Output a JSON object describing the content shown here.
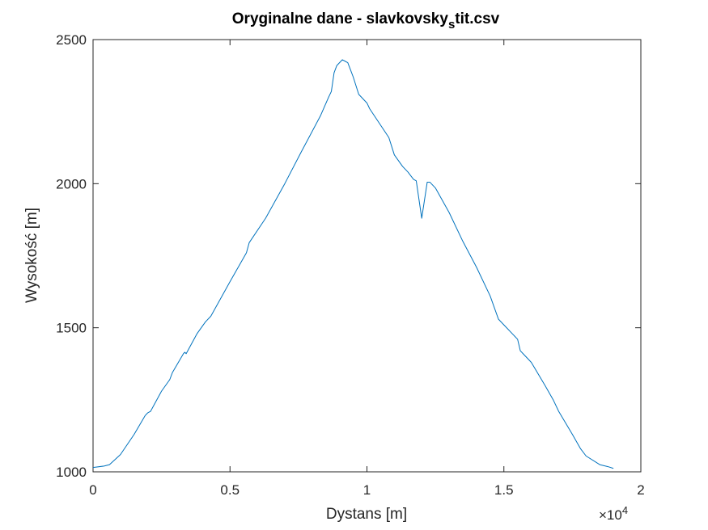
{
  "chart_data": {
    "type": "line",
    "title": {
      "main": "Oryginalne dane - slavkovsky",
      "subscript": "s",
      "rest": "tit.csv"
    },
    "xlabel": "Dystans [m]",
    "ylabel": "Wysokość [m]",
    "x_exponent": {
      "base": "×10",
      "power": "4"
    },
    "xlim": [
      0,
      20000
    ],
    "ylim": [
      1000,
      2500
    ],
    "x_ticks": [
      0,
      5000,
      10000,
      15000,
      20000
    ],
    "x_tick_labels": [
      "0",
      "0.5",
      "1",
      "1.5",
      "2"
    ],
    "y_ticks": [
      1000,
      1500,
      2000,
      2500
    ],
    "y_tick_labels": [
      "1000",
      "1500",
      "2000",
      "2500"
    ],
    "grid": false,
    "box": true,
    "series": [
      {
        "color": "#0072BD",
        "x": [
          0,
          400,
          600,
          1000,
          1500,
          1900,
          2000,
          2100,
          2500,
          2800,
          2900,
          3300,
          3350,
          3400,
          3800,
          4100,
          4300,
          5000,
          5600,
          5700,
          6300,
          7000,
          7600,
          8300,
          8600,
          8700,
          8800,
          8900,
          9100,
          9200,
          9300,
          9400,
          9500,
          9700,
          10000,
          10100,
          10800,
          11000,
          11300,
          11500,
          11700,
          11800,
          12000,
          12200,
          12300,
          12500,
          13000,
          13500,
          14000,
          14500,
          14800,
          15000,
          15500,
          15600,
          15700,
          16000,
          16500,
          16800,
          17000,
          17500,
          17800,
          18000,
          18500,
          18800,
          19000
        ],
        "y": [
          1015,
          1020,
          1025,
          1060,
          1130,
          1195,
          1205,
          1210,
          1280,
          1320,
          1345,
          1410,
          1415,
          1410,
          1480,
          1520,
          1540,
          1660,
          1760,
          1795,
          1880,
          2000,
          2110,
          2235,
          2300,
          2320,
          2385,
          2410,
          2430,
          2425,
          2420,
          2395,
          2370,
          2310,
          2280,
          2260,
          2160,
          2100,
          2060,
          2040,
          2015,
          2010,
          1880,
          2005,
          2005,
          1985,
          1900,
          1800,
          1710,
          1610,
          1530,
          1510,
          1460,
          1420,
          1410,
          1380,
          1300,
          1250,
          1210,
          1130,
          1080,
          1055,
          1025,
          1018,
          1012
        ]
      }
    ]
  }
}
